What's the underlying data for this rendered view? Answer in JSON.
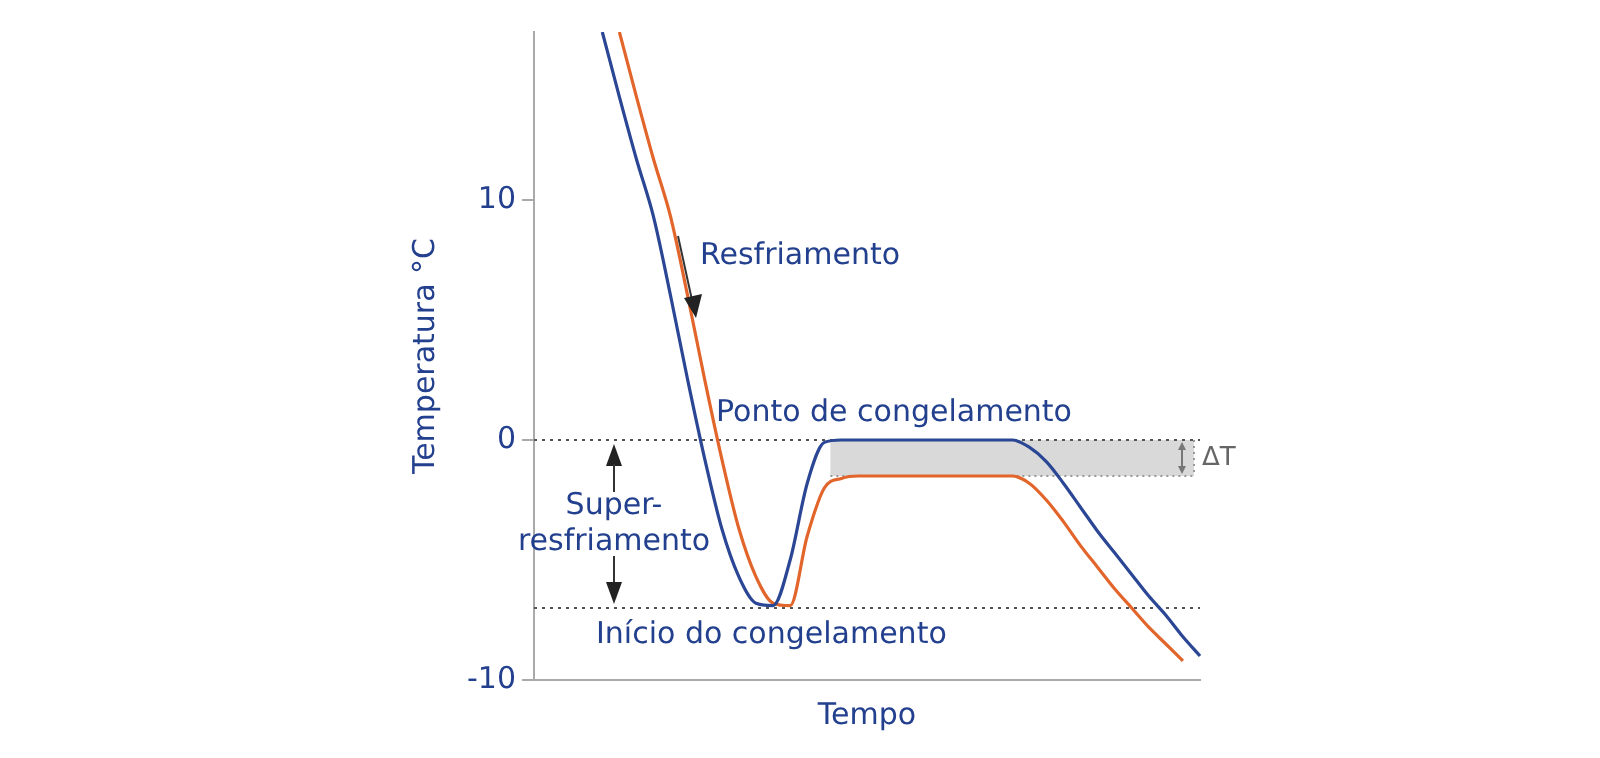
{
  "chart_data": {
    "type": "line",
    "xlabel": "Tempo",
    "ylabel": "Temperatura °C",
    "categories": [
      null,
      null,
      null,
      null,
      null,
      null,
      null,
      null,
      null,
      null,
      null,
      null,
      null,
      null,
      null,
      null,
      null,
      null,
      null,
      null,
      null,
      null,
      null,
      null,
      null,
      null,
      null,
      null,
      null,
      null,
      null,
      null,
      null,
      null,
      null,
      null,
      null,
      null,
      null,
      null
    ],
    "series": [
      {
        "color": "#2a4694",
        "values": [
          null,
          null,
          null,
          null,
          17,
          14.3,
          11.7,
          9.3,
          6.0,
          2.5,
          -0.8,
          -3.7,
          -5.7,
          -6.8,
          -6.9,
          -5.0,
          -1.8,
          -0.1,
          0,
          0,
          0,
          0,
          0,
          0,
          0,
          0,
          0,
          0,
          0,
          -0.3,
          -0.9,
          -1.8,
          -2.8,
          -3.8,
          -4.7,
          -5.6,
          -6.5,
          -7.3,
          -8.2,
          -9.0
        ]
      },
      {
        "color": "#e2652b",
        "values": [
          null,
          null,
          null,
          null,
          null,
          17,
          14.3,
          11.7,
          9.3,
          6.0,
          2.5,
          -0.8,
          -3.7,
          -5.7,
          -6.8,
          -6.9,
          -4.0,
          -2.0,
          -1.6,
          -1.5,
          -1.5,
          -1.5,
          -1.5,
          -1.5,
          -1.5,
          -1.5,
          -1.5,
          -1.5,
          -1.5,
          -1.8,
          -2.5,
          -3.4,
          -4.4,
          -5.3,
          -6.2,
          -7.0,
          -7.8,
          -8.5,
          -9.2,
          null
        ]
      }
    ],
    "ylim": [
      -10,
      17
    ],
    "yticks": [
      -10,
      0,
      10
    ],
    "tick_labels": "y",
    "grid": false,
    "legend": false,
    "marker": "none",
    "line_style": "solid",
    "ref_lines": [
      {
        "axis": "y",
        "value": 0,
        "label": "Ponto de congelamento",
        "color": "#555555",
        "line_style": "dotted"
      },
      {
        "axis": "y",
        "value": -7,
        "label": "Início do congelamento",
        "color": "#555555",
        "line_style": "dotted"
      }
    ],
    "bands": [
      {
        "axis": "y",
        "from": -1.5,
        "to": 0,
        "label": "ΔT",
        "color": "#d9d9d9"
      }
    ],
    "annotations": [
      "Resfriamento",
      "Super-resfriamento"
    ]
  }
}
